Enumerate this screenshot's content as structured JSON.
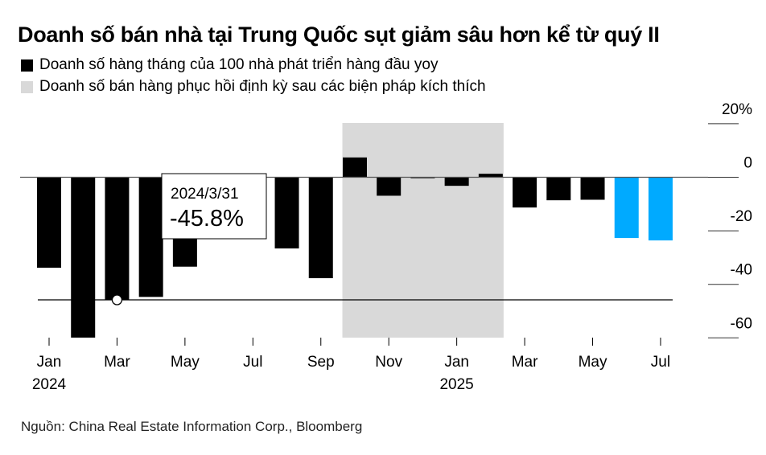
{
  "title": "Doanh số bán nhà tại Trung Quốc sụt giảm sâu hơn kể từ quý II",
  "legend": [
    {
      "label": "Doanh số hàng tháng của 100 nhà phát triển hàng đầu yoy",
      "color": "#000000"
    },
    {
      "label": "Doanh số bán hàng phục hồi định kỳ sau các biện pháp kích thích",
      "color": "#d9d9d9"
    }
  ],
  "source": "Nguồn: China Real Estate Information Corp., Bloomberg",
  "chart_data": {
    "type": "bar",
    "months": [
      "2024-01",
      "2024-02",
      "2024-03",
      "2024-04",
      "2024-05",
      "2024-06",
      "2024-07",
      "2024-08",
      "2024-09",
      "2024-10",
      "2024-11",
      "2024-12",
      "2025-01",
      "2025-02",
      "2025-03",
      "2025-04",
      "2025-05",
      "2025-06",
      "2025-07"
    ],
    "values": [
      -33.8,
      -59.9,
      -45.8,
      -44.7,
      -33.4,
      null,
      null,
      -26.6,
      -37.7,
      7.4,
      -6.9,
      -0.3,
      -3.2,
      1.3,
      -11.3,
      -8.6,
      -8.4,
      -22.7,
      -23.6
    ],
    "highlight_color": "#00aaff",
    "highlighted_months": [
      "2025-06",
      "2025-07"
    ],
    "bar_color": "#000000",
    "shaded_range": [
      "2024-10",
      "2025-02"
    ],
    "shade_color": "#d9d9d9",
    "reference_line": -45.8,
    "annotation": {
      "date": "2024/3/31",
      "value": "-45.8%"
    },
    "x_ticks": [
      {
        "m": "2024-01",
        "label": "Jan",
        "year": "2024"
      },
      {
        "m": "2024-03",
        "label": "Mar"
      },
      {
        "m": "2024-05",
        "label": "May"
      },
      {
        "m": "2024-07",
        "label": "Jul"
      },
      {
        "m": "2024-09",
        "label": "Sep"
      },
      {
        "m": "2024-11",
        "label": "Nov"
      },
      {
        "m": "2025-01",
        "label": "Jan",
        "year": "2025"
      },
      {
        "m": "2025-03",
        "label": "Mar"
      },
      {
        "m": "2025-05",
        "label": "May"
      },
      {
        "m": "2025-07",
        "label": "Jul"
      }
    ],
    "y_ticks": [
      {
        "v": 20,
        "label": "20%"
      },
      {
        "v": 0,
        "label": "0"
      },
      {
        "v": -20,
        "label": "-20"
      },
      {
        "v": -40,
        "label": "-40"
      },
      {
        "v": -60,
        "label": "-60"
      }
    ],
    "ylim": [
      -60,
      20
    ],
    "y_axis_position": "right"
  }
}
